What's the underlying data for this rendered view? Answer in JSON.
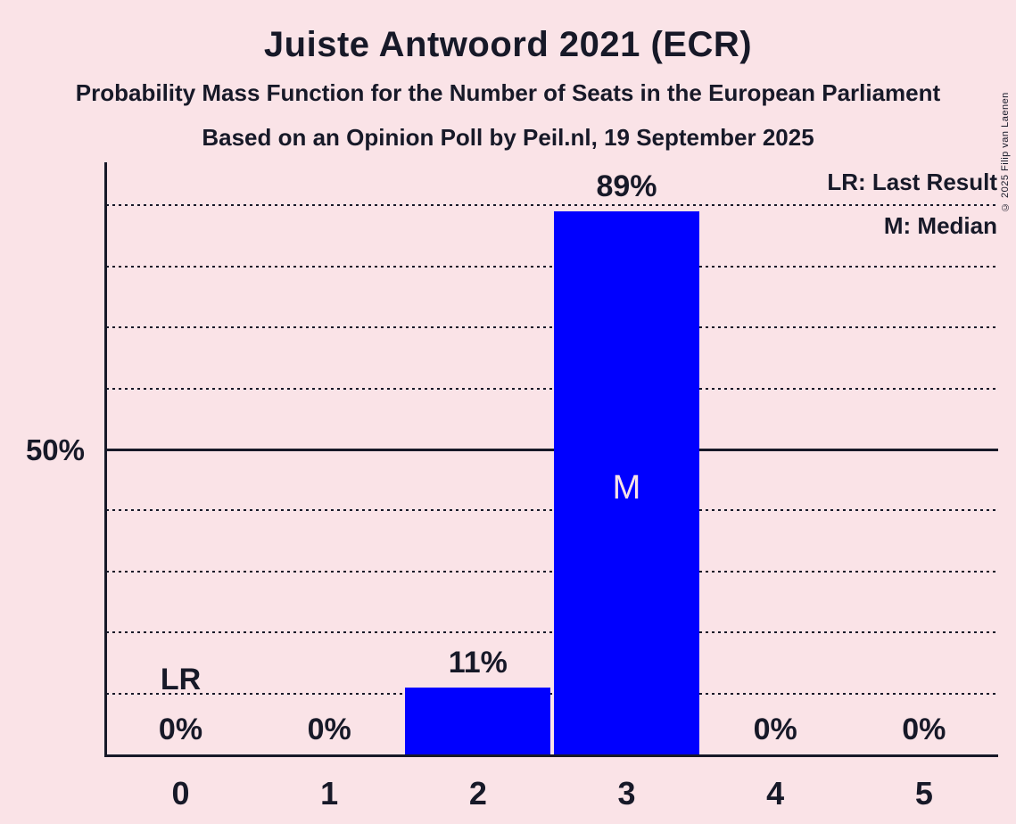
{
  "header": {
    "title": "Juiste Antwoord 2021 (ECR)",
    "subtitle": "Probability Mass Function for the Number of Seats in the European Parliament",
    "source_line": "Based on an Opinion Poll by Peil.nl, 19 September 2025"
  },
  "copyright": "© 2025 Filip van Laenen",
  "legend": {
    "last_result": "LR: Last Result",
    "median": "M: Median"
  },
  "y_axis": {
    "label_50": "50%"
  },
  "chart_data": {
    "type": "bar",
    "title": "Juiste Antwoord 2021 (ECR)",
    "categories": [
      "0",
      "1",
      "2",
      "3",
      "4",
      "5"
    ],
    "values": [
      0,
      0,
      11,
      89,
      0,
      0
    ],
    "value_labels": [
      "0%",
      "0%",
      "11%",
      "89%",
      "0%",
      "0%"
    ],
    "ylim": [
      0,
      100
    ],
    "gridlines_percent": [
      10,
      20,
      30,
      40,
      50,
      60,
      70,
      80,
      90
    ],
    "solid_gridline_percent": 50,
    "grid_style": "dotted",
    "legend_position": "top-right",
    "annotations": {
      "last_result": {
        "category": "0",
        "label": "LR"
      },
      "median": {
        "category": "3",
        "label": "M"
      }
    },
    "colors": {
      "bar": "#0000FF",
      "background": "#FAE3E7",
      "text": "#171928",
      "median_label": "#FAE3E7"
    }
  }
}
